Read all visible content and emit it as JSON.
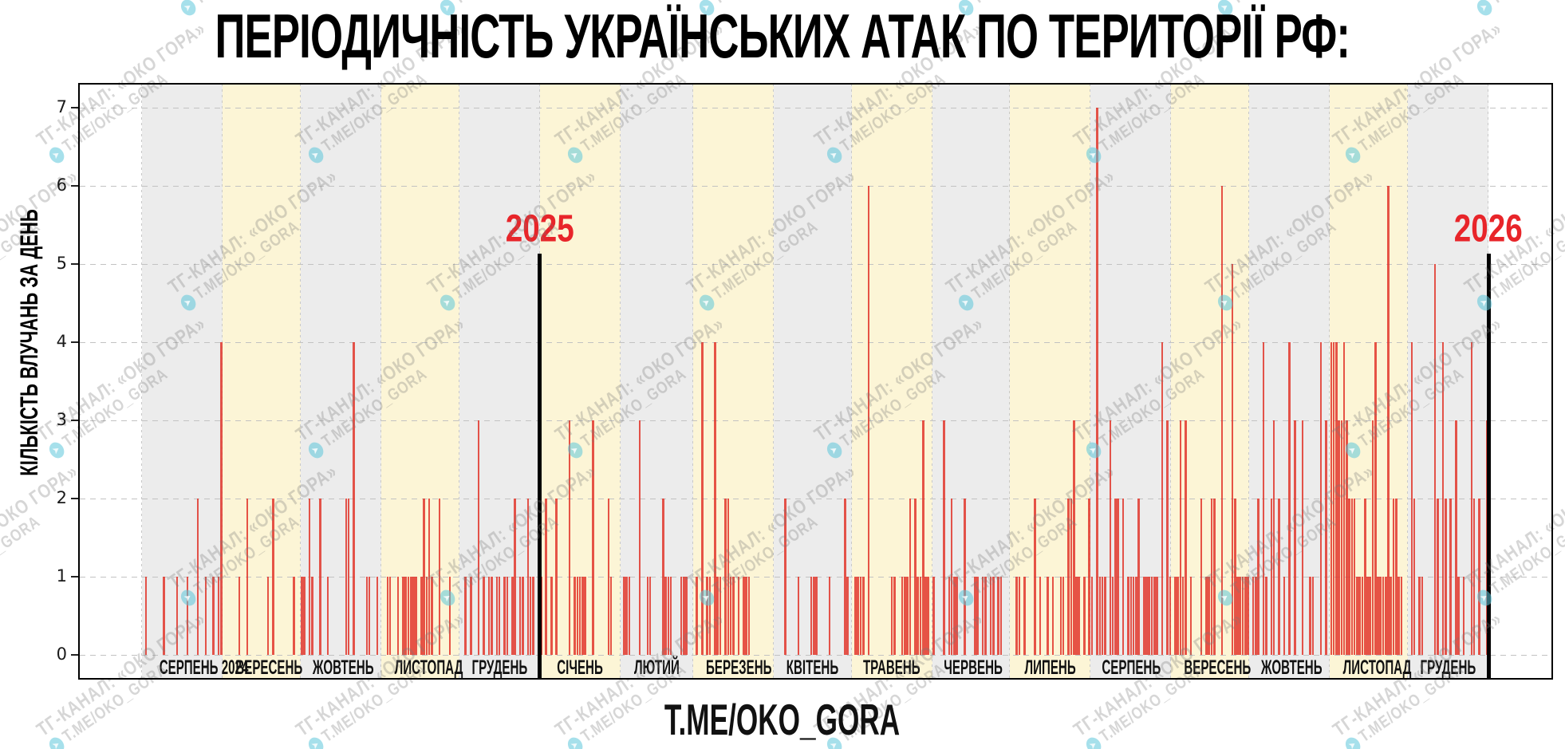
{
  "title": "ПЕРІОДИЧНІСТЬ УКРАЇНСЬКИХ АТАК ПО ТЕРИТОРІЇ РФ:",
  "caption": "T.ME/OKO_GORA",
  "watermark": {
    "line1": "ТГ-КАНАЛ: «ОКО ГОРА»",
    "line2": "T.ME/OKO_GORA",
    "icon": "telegram-circle-icon"
  },
  "year_markers": [
    {
      "label": "2025",
      "after_days": 153
    },
    {
      "label": "2026",
      "after_days": 518
    }
  ],
  "chart_data": {
    "type": "bar",
    "title": "ПЕРІОДИЧНІСТЬ УКРАЇНСЬКИХ АТАК ПО ТЕРИТОРІЇ РФ:",
    "xlabel": "",
    "ylabel": "КІЛЬКІСТЬ ВЛУЧАНЬ ЗА ДЕНЬ",
    "yticks": [
      0,
      1,
      2,
      3,
      4,
      5,
      6,
      7
    ],
    "ylim": [
      0,
      7.3
    ],
    "grid": "dashed horizontal at each integer, dotted vertical at month boundaries",
    "legend": "none",
    "bar_color": "#e03024",
    "band_colors": {
      "even": "#ececec",
      "odd": "#fcf5d6"
    },
    "year_marker_color": "#e8252a",
    "months": [
      {
        "label": "СЕРПЕНЬ 2024",
        "days": 31,
        "values": [
          0,
          1,
          0,
          0,
          0,
          0,
          0,
          0,
          1,
          0,
          0,
          0,
          0,
          1,
          0,
          0,
          0,
          1,
          0,
          0,
          0,
          2,
          0,
          0,
          1,
          0,
          0,
          1,
          0,
          1,
          4
        ]
      },
      {
        "label": "ВЕРЕСЕНЬ",
        "days": 30,
        "values": [
          0,
          0,
          0,
          0,
          0,
          0,
          1,
          0,
          0,
          2,
          0,
          0,
          0,
          0,
          0,
          0,
          0,
          1,
          0,
          2,
          0,
          0,
          0,
          0,
          0,
          0,
          0,
          1,
          0,
          0
        ]
      },
      {
        "label": "ЖОВТЕНЬ",
        "days": 31,
        "values": [
          1,
          1,
          0,
          2,
          1,
          0,
          0,
          2,
          0,
          0,
          1,
          0,
          0,
          0,
          0,
          0,
          0,
          2,
          2,
          0,
          4,
          0,
          0,
          0,
          0,
          1,
          1,
          0,
          0,
          1,
          0
        ]
      },
      {
        "label": "ЛИСТОПАД",
        "days": 30,
        "values": [
          0,
          0,
          1,
          1,
          0,
          0,
          1,
          0,
          1,
          1,
          1,
          1,
          1,
          1,
          0,
          1,
          2,
          1,
          2,
          1,
          0,
          0,
          2,
          0,
          0,
          0,
          1,
          0,
          0,
          0
        ]
      },
      {
        "label": "ГРУДЕНЬ",
        "days": 31,
        "values": [
          0,
          0,
          1,
          0,
          1,
          0,
          0,
          3,
          0,
          1,
          0,
          1,
          1,
          0,
          1,
          1,
          0,
          1,
          1,
          0,
          1,
          2,
          0,
          1,
          1,
          0,
          2,
          1,
          1,
          0,
          0
        ]
      },
      {
        "label": "СІЧЕНЬ",
        "days": 31,
        "values": [
          1,
          0,
          2,
          0,
          1,
          0,
          2,
          0,
          0,
          0,
          0,
          3,
          0,
          1,
          1,
          1,
          1,
          1,
          0,
          0,
          3,
          0,
          0,
          0,
          0,
          0,
          2,
          1,
          0,
          0,
          0
        ]
      },
      {
        "label": "ЛЮТИЙ",
        "days": 28,
        "values": [
          0,
          1,
          1,
          1,
          0,
          0,
          0,
          3,
          0,
          0,
          1,
          1,
          0,
          0,
          0,
          0,
          2,
          1,
          1,
          1,
          0,
          0,
          0,
          1,
          1,
          1,
          0,
          0
        ]
      },
      {
        "label": "БЕРЕЗЕНЬ",
        "days": 31,
        "values": [
          0,
          1,
          0,
          4,
          0,
          1,
          1,
          0,
          4,
          1,
          1,
          0,
          2,
          2,
          1,
          1,
          0,
          1,
          0,
          1,
          1,
          1,
          0,
          0,
          0,
          0,
          0,
          0,
          0,
          0,
          0
        ]
      },
      {
        "label": "КВІТЕНЬ",
        "days": 30,
        "values": [
          0,
          0,
          0,
          0,
          2,
          0,
          0,
          0,
          0,
          1,
          0,
          0,
          0,
          0,
          1,
          1,
          1,
          0,
          0,
          0,
          0,
          1,
          0,
          0,
          0,
          0,
          0,
          2,
          1,
          0
        ]
      },
      {
        "label": "ТРАВЕНЬ",
        "days": 31,
        "values": [
          0,
          1,
          1,
          1,
          1,
          0,
          6,
          0,
          0,
          0,
          0,
          0,
          0,
          0,
          0,
          1,
          1,
          0,
          0,
          1,
          1,
          1,
          2,
          0,
          2,
          1,
          1,
          3,
          1,
          1,
          0
        ]
      },
      {
        "label": "ЧЕРВЕНЬ",
        "days": 30,
        "values": [
          1,
          0,
          0,
          0,
          3,
          0,
          1,
          2,
          1,
          1,
          0,
          0,
          2,
          0,
          0,
          0,
          1,
          1,
          0,
          1,
          1,
          0,
          1,
          1,
          0,
          1,
          1,
          0,
          0,
          0
        ]
      },
      {
        "label": "ЛИПЕНЬ",
        "days": 31,
        "values": [
          0,
          0,
          1,
          1,
          0,
          1,
          0,
          0,
          0,
          2,
          0,
          1,
          0,
          0,
          1,
          0,
          1,
          0,
          0,
          1,
          1,
          0,
          2,
          2,
          3,
          1,
          1,
          0,
          1,
          0,
          2
        ]
      },
      {
        "label": "СЕРПЕНЬ",
        "days": 31,
        "values": [
          1,
          0,
          7,
          1,
          1,
          1,
          0,
          3,
          1,
          2,
          2,
          0,
          2,
          0,
          1,
          1,
          1,
          1,
          2,
          0,
          1,
          1,
          1,
          1,
          1,
          1,
          0,
          4,
          0,
          3,
          1
        ]
      },
      {
        "label": "ВЕРЕСЕНЬ",
        "days": 30,
        "values": [
          0,
          1,
          1,
          3,
          1,
          3,
          0,
          1,
          0,
          0,
          0,
          2,
          0,
          1,
          1,
          2,
          2,
          0,
          0,
          6,
          0,
          0,
          0,
          5,
          2,
          1,
          1,
          1,
          1,
          1
        ]
      },
      {
        "label": "ЖОВТЕНЬ",
        "days": 31,
        "values": [
          0,
          1,
          1,
          2,
          0,
          4,
          1,
          0,
          2,
          3,
          0,
          2,
          0,
          1,
          0,
          4,
          0,
          3,
          0,
          0,
          3,
          0,
          0,
          1,
          1,
          0,
          0,
          4,
          0,
          3,
          0
        ]
      },
      {
        "label": "ЛИСТОПАД",
        "days": 30,
        "values": [
          4,
          4,
          4,
          3,
          3,
          4,
          3,
          2,
          2,
          2,
          1,
          1,
          1,
          2,
          1,
          1,
          3,
          4,
          1,
          1,
          1,
          1,
          6,
          1,
          2,
          2,
          1,
          1,
          0,
          0
        ]
      },
      {
        "label": "ГРУДЕНЬ",
        "days": 31,
        "values": [
          0,
          4,
          2,
          0,
          1,
          1,
          0,
          0,
          0,
          0,
          5,
          2,
          0,
          4,
          2,
          0,
          2,
          0,
          3,
          1,
          0,
          1,
          0,
          0,
          4,
          2,
          0,
          2,
          0,
          0,
          3
        ]
      }
    ]
  }
}
